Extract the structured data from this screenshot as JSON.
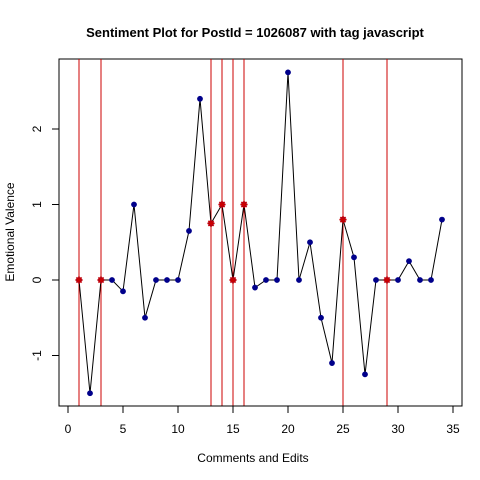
{
  "chart_data": {
    "type": "line",
    "title": "Sentiment Plot for PostId =  1026087  with tag  javascript",
    "xlabel": "Comments and Edits",
    "ylabel": "Emotional Valence",
    "xlim": [
      0,
      35
    ],
    "ylim": [
      -1.6,
      2.9
    ],
    "x_ticks": [
      0,
      5,
      10,
      15,
      20,
      25,
      30,
      35
    ],
    "y_ticks": [
      -1,
      0,
      1,
      2
    ],
    "grid": false,
    "colors": {
      "line": "#000000",
      "point": "#00008b",
      "marker": "#cc0000",
      "vline": "#cc0000"
    },
    "series": [
      {
        "x": [
          1,
          2,
          3,
          4,
          5,
          6,
          7,
          8,
          9,
          10,
          11,
          12,
          13,
          14,
          15,
          16,
          17,
          18,
          19,
          20,
          21,
          22,
          23,
          24,
          25,
          26,
          27,
          28,
          29,
          30,
          31,
          32,
          33,
          34
        ],
        "y": [
          0,
          -1.5,
          0,
          0,
          -0.15,
          1.0,
          -0.5,
          0,
          0,
          0,
          0.65,
          2.4,
          0.75,
          1.0,
          0,
          1.0,
          -0.1,
          0,
          0,
          2.75,
          0,
          0.5,
          -0.5,
          -1.1,
          0.8,
          0.3,
          -1.25,
          0,
          0,
          0,
          0.25,
          0,
          0,
          0.8
        ]
      }
    ],
    "highlighted_x": [
      1,
      3,
      13,
      14,
      15,
      16,
      25,
      29
    ]
  }
}
